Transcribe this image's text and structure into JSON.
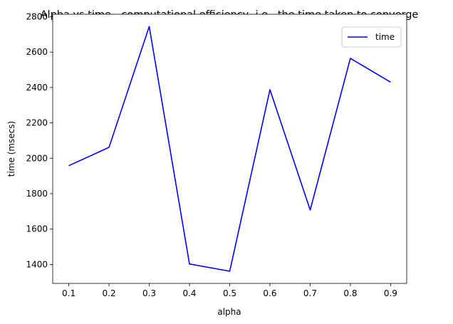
{
  "chart_data": {
    "type": "line",
    "title": "Alpha vs time - computational efficiency, i.e., the time taken to converge",
    "xlabel": "alpha",
    "ylabel": "time (msecs)",
    "x": [
      0.1,
      0.2,
      0.3,
      0.4,
      0.5,
      0.6,
      0.7,
      0.8,
      0.9
    ],
    "series": [
      {
        "name": "time",
        "color": "#0000ff",
        "values": [
          1958,
          2062,
          2745,
          1403,
          1362,
          2388,
          1708,
          2565,
          2430
        ]
      }
    ],
    "xlim": [
      0.06,
      0.94
    ],
    "ylim": [
      1293,
      2814
    ],
    "xticks": [
      "0.1",
      "0.2",
      "0.3",
      "0.4",
      "0.5",
      "0.6",
      "0.7",
      "0.8",
      "0.9"
    ],
    "yticks": [
      "1400",
      "1600",
      "1800",
      "2000",
      "2200",
      "2400",
      "2600",
      "2800"
    ],
    "ytick_values": [
      1400,
      1600,
      1800,
      2000,
      2200,
      2400,
      2600,
      2800
    ],
    "grid": false,
    "legend_position": "top-right"
  }
}
